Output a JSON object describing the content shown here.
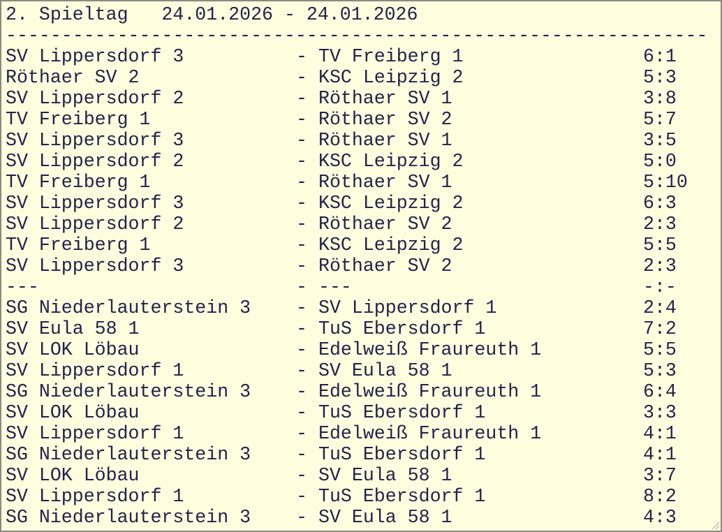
{
  "header": {
    "title": "2. Spieltag   24.01.2026 - 24.01.2026",
    "separator": "---------------------------------------------------------------"
  },
  "dash": "-",
  "rows": [
    {
      "home": "SV Lippersdorf 3",
      "away": "TV Freiberg 1",
      "score": "6:1"
    },
    {
      "home": "Röthaer SV 2",
      "away": "KSC Leipzig 2",
      "score": "5:3"
    },
    {
      "home": "SV Lippersdorf 2",
      "away": "Röthaer SV 1",
      "score": "3:8"
    },
    {
      "home": "TV Freiberg 1",
      "away": "Röthaer SV 2",
      "score": "5:7"
    },
    {
      "home": "SV Lippersdorf 3",
      "away": "Röthaer SV 1",
      "score": "3:5"
    },
    {
      "home": "SV Lippersdorf 2",
      "away": "KSC Leipzig 2",
      "score": "5:0"
    },
    {
      "home": "TV Freiberg 1",
      "away": "Röthaer SV 1",
      "score": "5:10"
    },
    {
      "home": "SV Lippersdorf 3",
      "away": "KSC Leipzig 2",
      "score": "6:3"
    },
    {
      "home": "SV Lippersdorf 2",
      "away": "Röthaer SV 2",
      "score": "2:3"
    },
    {
      "home": "TV Freiberg 1",
      "away": "KSC Leipzig 2",
      "score": "5:5"
    },
    {
      "home": "SV Lippersdorf 3",
      "away": "Röthaer SV 2",
      "score": "2:3"
    },
    {
      "home": "---",
      "away": "---",
      "score": "-:-"
    },
    {
      "home": "SG Niederlauterstein 3",
      "away": "SV Lippersdorf 1",
      "score": "2:4"
    },
    {
      "home": "SV Eula 58 1",
      "away": "TuS Ebersdorf 1",
      "score": "7:2"
    },
    {
      "home": "SV LOK Löbau",
      "away": "Edelweiß Fraureuth 1",
      "score": "5:5"
    },
    {
      "home": "SV Lippersdorf 1",
      "away": "SV Eula 58 1",
      "score": "5:3"
    },
    {
      "home": "SG Niederlauterstein 3",
      "away": "Edelweiß Fraureuth 1",
      "score": "6:4"
    },
    {
      "home": "SV LOK Löbau",
      "away": "TuS Ebersdorf 1",
      "score": "3:3"
    },
    {
      "home": "SV Lippersdorf 1",
      "away": "Edelweiß Fraureuth 1",
      "score": "4:1"
    },
    {
      "home": "SG Niederlauterstein 3",
      "away": "TuS Ebersdorf 1",
      "score": "4:1"
    },
    {
      "home": "SV LOK Löbau",
      "away": "SV Eula 58 1",
      "score": "3:7"
    },
    {
      "home": "SV Lippersdorf 1",
      "away": "TuS Ebersdorf 1",
      "score": "8:2"
    },
    {
      "home": "SG Niederlauterstein 3",
      "away": "SV Eula 58 1",
      "score": "4:3"
    }
  ],
  "colors": {
    "background": "#ffffe0",
    "text": "#22224a",
    "border": "#8a8a80"
  }
}
